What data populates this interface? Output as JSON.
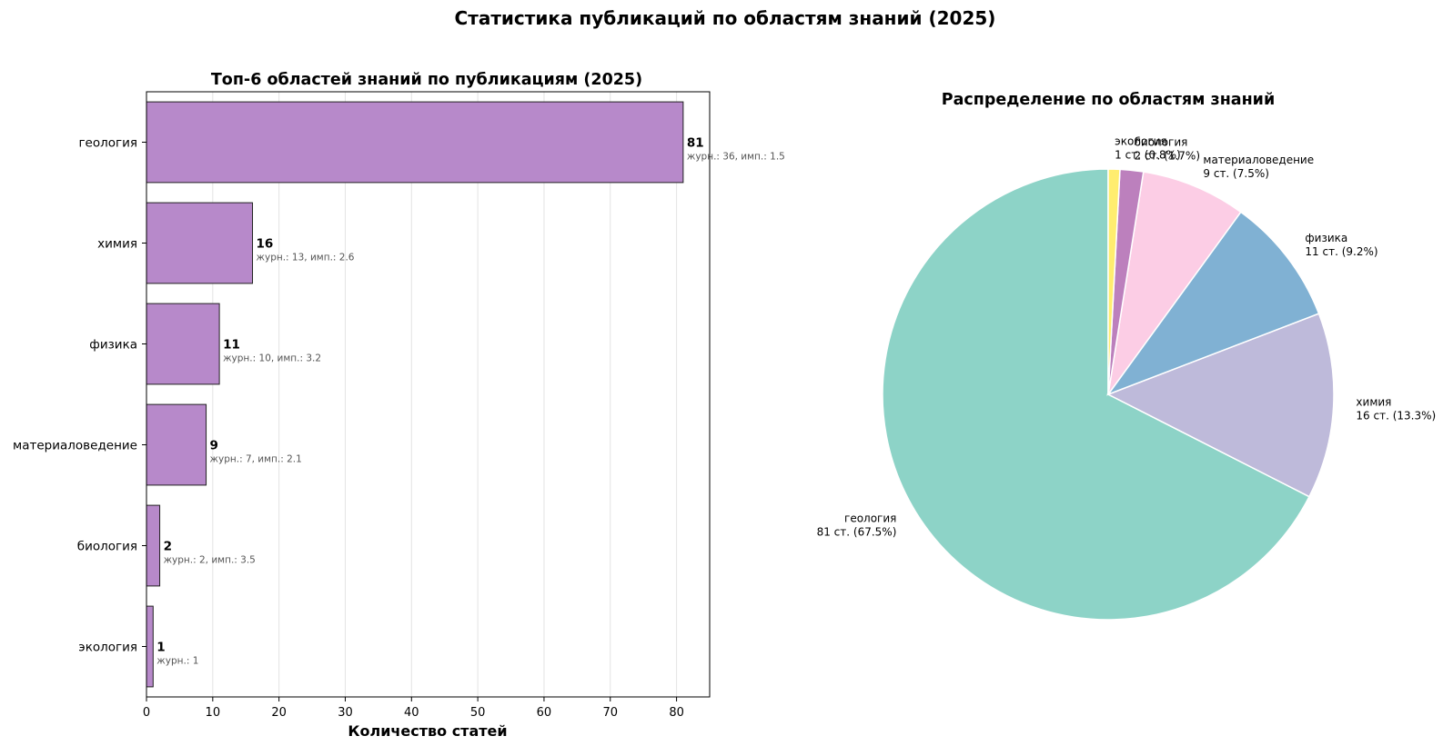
{
  "figure": {
    "suptitle": "Статистика публикаций по областям знаний (2025)"
  },
  "chart_data": [
    {
      "type": "bar",
      "orientation": "horizontal",
      "title": "Топ-6 областей знаний по публикациям (2025)",
      "xlabel": "Количество статей",
      "ylabel": "",
      "xlim": [
        0,
        85
      ],
      "xticks": [
        0,
        10,
        20,
        30,
        40,
        50,
        60,
        70,
        80
      ],
      "grid": "x",
      "bar_color": "#b789ca",
      "categories": [
        "геология",
        "химия",
        "физика",
        "материаловедение",
        "биология",
        "экология"
      ],
      "values": [
        81,
        16,
        11,
        9,
        2,
        1
      ],
      "value_labels": [
        "81",
        "16",
        "11",
        "9",
        "2",
        "1"
      ],
      "annotations": [
        "журн.: 36, имп.: 1.5",
        "журн.: 13, имп.: 2.6",
        "журн.: 10, имп.: 3.2",
        "журн.: 7, имп.: 2.1",
        "журн.: 2, имп.: 3.5",
        "журн.: 1"
      ]
    },
    {
      "type": "pie",
      "title": "Распределение по областям знаний",
      "start_angle": 90,
      "direction": "counterclockwise",
      "slices": [
        {
          "label": "геология",
          "value": 81,
          "text": "81 ст. (67.5%)",
          "color": "#8dd3c7"
        },
        {
          "label": "химия",
          "value": 16,
          "text": "16 ст. (13.3%)",
          "color": "#bebada"
        },
        {
          "label": "физика",
          "value": 11,
          "text": "11 ст. (9.2%)",
          "color": "#80b1d3"
        },
        {
          "label": "материаловедение",
          "value": 9,
          "text": "9 ст. (7.5%)",
          "color": "#fccde5"
        },
        {
          "label": "биология",
          "value": 2,
          "text": "2 ст. (1.7%)",
          "color": "#bc80bd"
        },
        {
          "label": "экология",
          "value": 1,
          "text": "1 ст. (0.8%)",
          "color": "#ffed6f"
        }
      ]
    }
  ]
}
